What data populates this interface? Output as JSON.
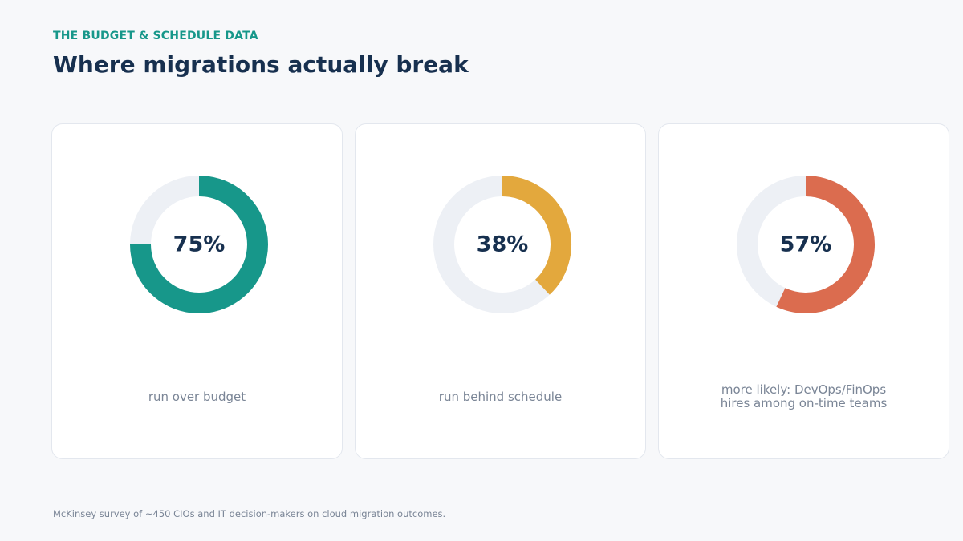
{
  "header": {
    "eyebrow": "THE BUDGET & SCHEDULE DATA",
    "title": "Where migrations actually break"
  },
  "chart_data": [
    {
      "type": "pie",
      "value": 75,
      "value_label": "75%",
      "caption": "run over budget",
      "color": "#17978a",
      "track_color": "#edf0f5"
    },
    {
      "type": "pie",
      "value": 38,
      "value_label": "38%",
      "caption": "run behind schedule",
      "color": "#e3a83d",
      "track_color": "#edf0f5"
    },
    {
      "type": "pie",
      "value": 57,
      "value_label": "57%",
      "caption": "more likely: DevOps/FinOps\nhires among on-time teams",
      "color": "#db6c4f",
      "track_color": "#edf0f5"
    }
  ],
  "footnote": "McKinsey survey of ~450 CIOs and IT decision-makers on cloud migration outcomes."
}
